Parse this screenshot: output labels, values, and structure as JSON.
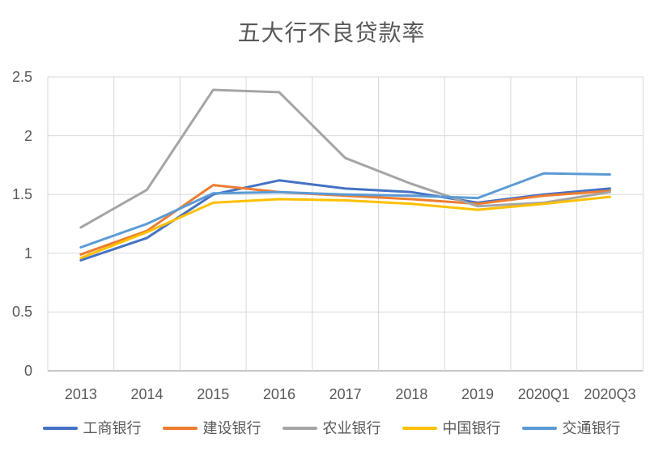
{
  "chart_data": {
    "type": "line",
    "title": "五大行不良贷款率",
    "xlabel": "",
    "ylabel": "",
    "categories": [
      "2013",
      "2014",
      "2015",
      "2016",
      "2017",
      "2018",
      "2019",
      "2020Q1",
      "2020Q3"
    ],
    "series": [
      {
        "name": "工商银行",
        "color": "#4472C4",
        "values": [
          0.94,
          1.13,
          1.5,
          1.62,
          1.55,
          1.52,
          1.43,
          1.5,
          1.55
        ]
      },
      {
        "name": "建设银行",
        "color": "#ED7D31",
        "values": [
          0.99,
          1.19,
          1.58,
          1.52,
          1.49,
          1.46,
          1.42,
          1.49,
          1.53
        ]
      },
      {
        "name": "农业银行",
        "color": "#A5A5A5",
        "values": [
          1.22,
          1.54,
          2.39,
          2.37,
          1.81,
          1.59,
          1.4,
          1.43,
          1.52
        ]
      },
      {
        "name": "中国银行",
        "color": "#FFC000",
        "values": [
          0.96,
          1.18,
          1.43,
          1.46,
          1.45,
          1.42,
          1.37,
          1.42,
          1.48
        ]
      },
      {
        "name": "交通银行",
        "color": "#5B9BD5",
        "values": [
          1.05,
          1.25,
          1.51,
          1.52,
          1.5,
          1.49,
          1.47,
          1.68,
          1.67
        ]
      }
    ],
    "yticks": [
      {
        "label": "2.5",
        "value": 2.5
      },
      {
        "label": "2",
        "value": 2.0
      },
      {
        "label": "1.5",
        "value": 1.5
      },
      {
        "label": "1",
        "value": 1.0
      },
      {
        "label": "0.5",
        "value": 0.5
      },
      {
        "label": "0",
        "value": 0.0
      }
    ],
    "ylim": [
      0,
      2.5
    ],
    "grid": true,
    "legend_position": "bottom",
    "colors": {
      "gridline": "#D9D9D9",
      "axis_line": "#BFBFBF",
      "text": "#595959",
      "background": "#FFFFFF"
    }
  }
}
